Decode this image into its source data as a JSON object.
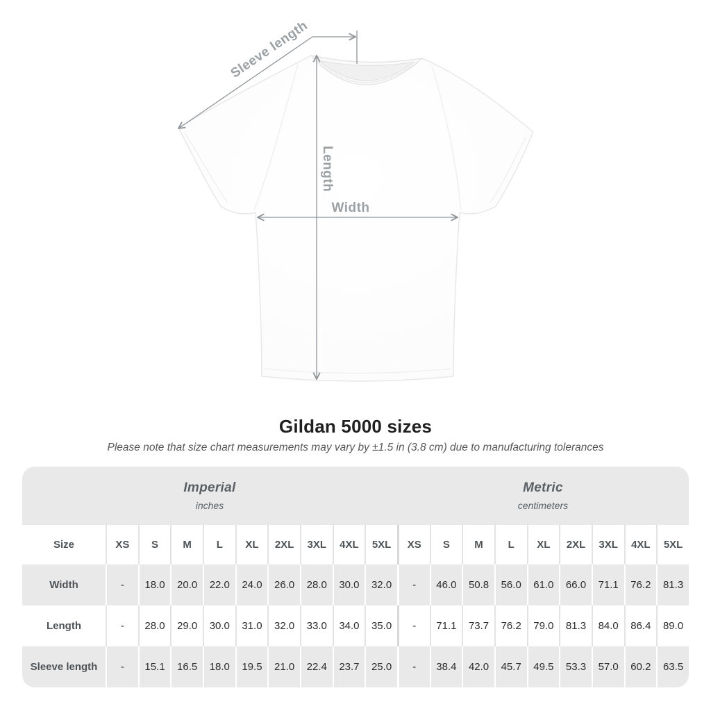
{
  "diagram": {
    "sleeve_length_label": "Sleeve length",
    "length_label": "Length",
    "width_label": "Width"
  },
  "heading": {
    "title": "Gildan 5000 sizes",
    "subtitle": "Please note that size chart measurements may vary by ±1.5 in (3.8 cm) due to manufacturing tolerances"
  },
  "table": {
    "unit_groups": [
      {
        "label": "Imperial",
        "unit": "inches"
      },
      {
        "label": "Metric",
        "unit": "centimeters"
      }
    ],
    "size_header": "Size",
    "sizes": [
      "XS",
      "S",
      "M",
      "L",
      "XL",
      "2XL",
      "3XL",
      "4XL",
      "5XL"
    ],
    "rows": [
      {
        "label": "Width",
        "imperial": [
          "-",
          "18.0",
          "20.0",
          "22.0",
          "24.0",
          "26.0",
          "28.0",
          "30.0",
          "32.0"
        ],
        "metric": [
          "-",
          "46.0",
          "50.8",
          "56.0",
          "61.0",
          "66.0",
          "71.1",
          "76.2",
          "81.3"
        ]
      },
      {
        "label": "Length",
        "imperial": [
          "-",
          "28.0",
          "29.0",
          "30.0",
          "31.0",
          "32.0",
          "33.0",
          "34.0",
          "35.0"
        ],
        "metric": [
          "-",
          "71.1",
          "73.7",
          "76.2",
          "79.0",
          "81.3",
          "84.0",
          "86.4",
          "89.0"
        ]
      },
      {
        "label": "Sleeve length",
        "imperial": [
          "-",
          "15.1",
          "16.5",
          "18.0",
          "19.5",
          "21.0",
          "22.4",
          "23.7",
          "25.0"
        ],
        "metric": [
          "-",
          "38.4",
          "42.0",
          "45.7",
          "49.5",
          "53.3",
          "57.0",
          "60.2",
          "63.5"
        ]
      }
    ]
  },
  "colors": {
    "band_bg": "#e9e9e9",
    "row_alt_bg": "#e9e9e9",
    "divider": "#e3e3e3",
    "divider_strong": "#d8d8d8",
    "measure_line": "#8f9499",
    "measure_label": "#9aa0a4",
    "title_text": "#202020",
    "subtitle_text": "#575757",
    "header_text": "#4f5356",
    "cell_text": "#2d2d2d"
  }
}
